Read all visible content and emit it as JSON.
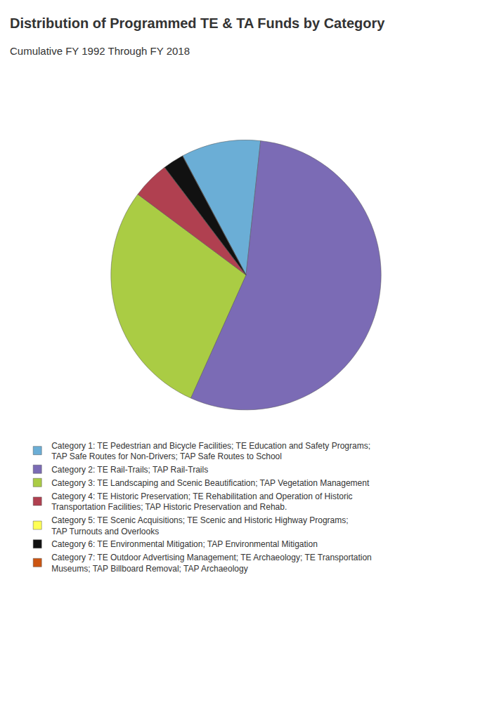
{
  "chart_data": {
    "type": "pie",
    "title": "Distribution of Programmed TE & TA Funds by Category",
    "subtitle": "Cumulative FY 1992 Through FY 2018",
    "categories": [
      "Category 1: TE Pedestrian and Bicycle Facilities; TE Education and Safety Programs;\nTAP Safe Routes for Non-Drivers; TAP Safe Routes to School",
      "Category 2: TE Rail-Trails; TAP Rail-Trails",
      "Category 3: TE Landscaping and Scenic Beautification; TAP Vegetation Management",
      "Category 4: TE Historic Preservation; TE Rehabilitation and Operation of Historic\nTransportation Facilities; TAP Historic Preservation and Rehab.",
      "Category 5: TE Scenic Acquisitions; TE Scenic and Historic Highway Programs;\nTAP Turnouts and Overlooks",
      "Category 6: TE Environmental Mitigation; TAP Environmental Mitigation",
      "Category 7: TE Outdoor Advertising Management; TE Archaeology; TE Transportation\nMuseums; TAP Billboard Removal; TAP Archaeology"
    ],
    "values": [
      9.5,
      55.0,
      28.5,
      4.5,
      0.01,
      2.5,
      0.01
    ],
    "colors": [
      "#6BAED6",
      "#7B6BB5",
      "#AACC44",
      "#B04050",
      "#FFFF55",
      "#111111",
      "#CC5511"
    ],
    "legend": "bottom"
  }
}
